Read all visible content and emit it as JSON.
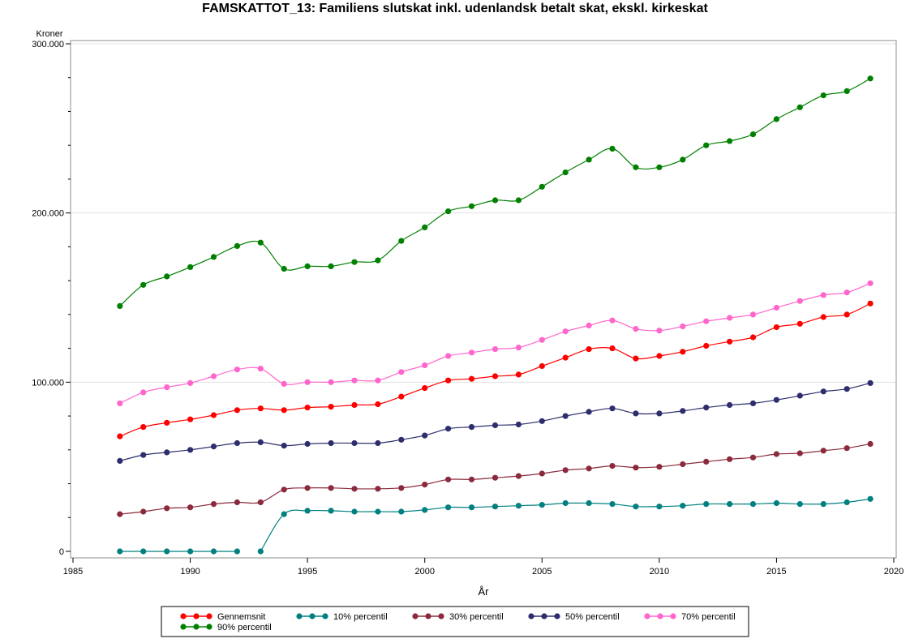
{
  "chart_data": {
    "type": "line",
    "title": "FAMSKATTOT_13: Familiens slutskat inkl. udenlandsk betalt skat, ekskl. kirkeskat",
    "xlabel": "År",
    "ylabel_unit": "Kroner",
    "xlim": [
      1985,
      2020
    ],
    "ylim": [
      0,
      300000
    ],
    "x_ticks": [
      1985,
      1990,
      1995,
      2000,
      2005,
      2010,
      2015,
      2020
    ],
    "y_ticks": [
      0,
      100000,
      200000,
      300000
    ],
    "y_tick_labels": [
      "0",
      "100.000",
      "200.000",
      "300.000"
    ],
    "grid": "horizontal major",
    "legend_position": "bottom",
    "x": [
      1987,
      1988,
      1989,
      1990,
      1991,
      1992,
      1993,
      1994,
      1995,
      1996,
      1997,
      1998,
      1999,
      2000,
      2001,
      2002,
      2003,
      2004,
      2005,
      2006,
      2007,
      2008,
      2009,
      2010,
      2011,
      2012,
      2013,
      2014,
      2015,
      2016,
      2017,
      2018,
      2019
    ],
    "series": [
      {
        "name": "Gennemsnit",
        "color": "#ff0000",
        "values": [
          68000,
          73500,
          76000,
          78000,
          80500,
          83500,
          84500,
          83500,
          85000,
          85500,
          86500,
          87000,
          91500,
          96500,
          101000,
          102000,
          103500,
          104500,
          109500,
          114500,
          119500,
          120000,
          114000,
          115500,
          118000,
          121500,
          124000,
          126500,
          132500,
          134500,
          138500,
          140000,
          146500
        ]
      },
      {
        "name": "10% percentil",
        "color": "#008080",
        "values": [
          0,
          0,
          0,
          0,
          0,
          0,
          0,
          22000,
          24000,
          24000,
          23500,
          23500,
          23500,
          24500,
          26000,
          26000,
          26500,
          27000,
          27500,
          28500,
          28500,
          28000,
          26500,
          26500,
          27000,
          28000,
          28000,
          28000,
          28500,
          28000,
          28000,
          29000,
          31000
        ]
      },
      {
        "name": "30% percentil",
        "color": "#8b2a3c",
        "values": [
          22000,
          23500,
          25500,
          26000,
          28000,
          29000,
          29000,
          36500,
          37500,
          37500,
          37000,
          37000,
          37500,
          39500,
          42500,
          42500,
          43500,
          44500,
          46000,
          48000,
          49000,
          50500,
          49500,
          50000,
          51500,
          53000,
          54500,
          55500,
          57500,
          58000,
          59500,
          61000,
          63500
        ]
      },
      {
        "name": "50% percentil",
        "color": "#2e2e6e",
        "values": [
          53500,
          57000,
          58500,
          60000,
          62000,
          64000,
          64500,
          62500,
          63500,
          64000,
          64000,
          64000,
          66000,
          68500,
          72500,
          73500,
          74500,
          75000,
          77000,
          80000,
          82500,
          84500,
          81500,
          81500,
          83000,
          85000,
          86500,
          87500,
          89500,
          92000,
          94500,
          96000,
          99500
        ]
      },
      {
        "name": "70% percentil",
        "color": "#ff66cc",
        "values": [
          87500,
          94000,
          97000,
          99500,
          103500,
          107500,
          108000,
          99000,
          100000,
          100000,
          101000,
          101000,
          106000,
          110000,
          115500,
          117500,
          119500,
          120500,
          125000,
          130000,
          133500,
          136500,
          131500,
          130500,
          133000,
          136000,
          138000,
          140000,
          144000,
          148000,
          151500,
          153000,
          158500
        ]
      },
      {
        "name": "90% percentil",
        "color": "#008000",
        "values": [
          145000,
          157500,
          162500,
          168000,
          174000,
          180500,
          182500,
          167000,
          168500,
          168500,
          171000,
          172000,
          183500,
          191500,
          201000,
          204000,
          207500,
          207500,
          215500,
          224000,
          231500,
          238000,
          227000,
          227000,
          231500,
          240000,
          242500,
          246500,
          255500,
          262500,
          269500,
          272000,
          279500
        ]
      }
    ]
  }
}
